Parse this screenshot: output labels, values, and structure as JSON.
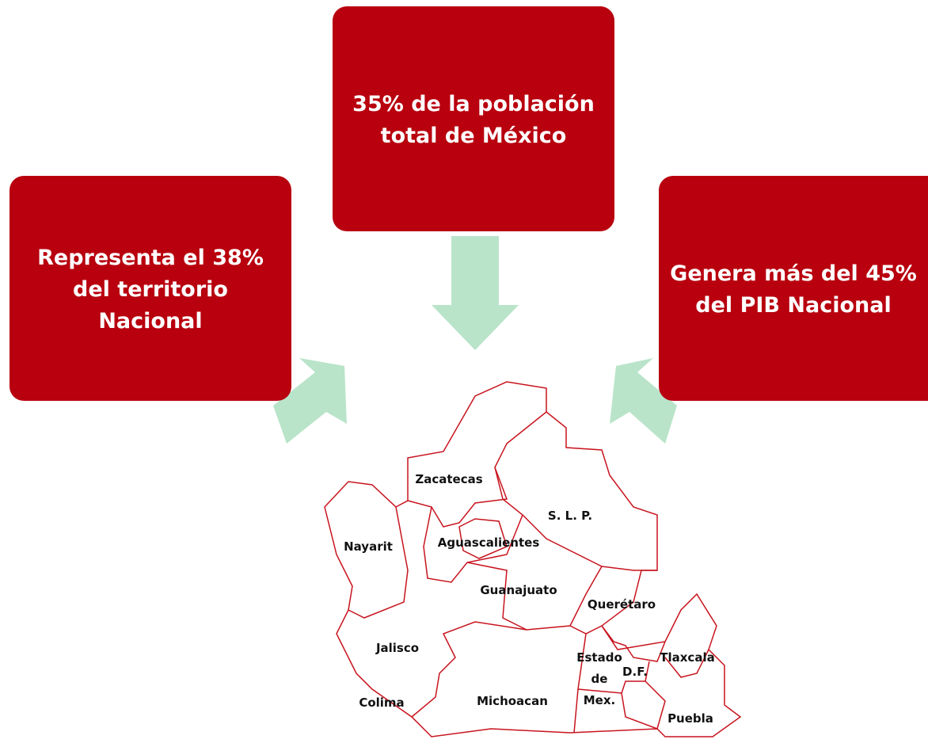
{
  "boxes": [
    {
      "lines": [
        "Representa el 38%",
        "del territorio",
        "Nacional"
      ]
    },
    {
      "lines": [
        "35% de la población",
        "total de México"
      ]
    },
    {
      "lines": [
        "Genera más del 45%",
        "del PIB Nacional"
      ]
    }
  ],
  "map_labels": [
    {
      "lines": [
        "Zacatecas"
      ]
    },
    {
      "lines": [
        "S. L. P."
      ]
    },
    {
      "lines": [
        "Nayarit"
      ]
    },
    {
      "lines": [
        "Aguascalientes"
      ]
    },
    {
      "lines": [
        "Guanajuato"
      ]
    },
    {
      "lines": [
        "Querétaro"
      ]
    },
    {
      "lines": [
        "Jalisco"
      ]
    },
    {
      "lines": [
        "Estado",
        "de",
        "Mex."
      ]
    },
    {
      "lines": [
        "D.F."
      ]
    },
    {
      "lines": [
        "Tlaxcala"
      ]
    },
    {
      "lines": [
        "Colima"
      ]
    },
    {
      "lines": [
        "Michoacan"
      ]
    },
    {
      "lines": [
        "Puebla"
      ]
    }
  ]
}
